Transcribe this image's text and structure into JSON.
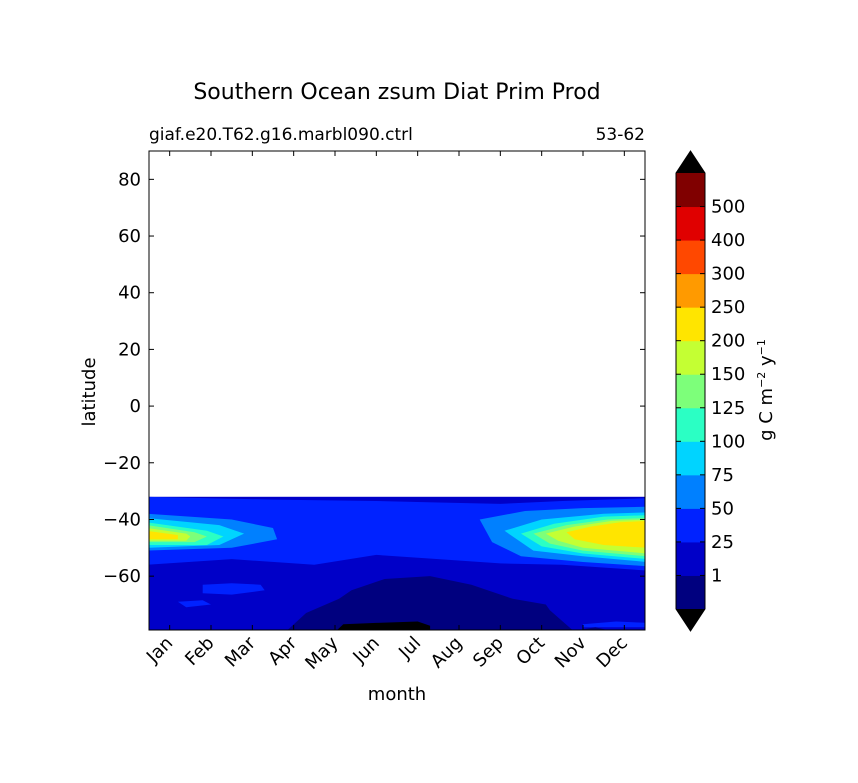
{
  "chart_data": {
    "type": "heatmap",
    "title": "Southern Ocean zsum Diat Prim Prod",
    "subtitle_left": "giaf.e20.T62.g16.marbl090.ctrl",
    "subtitle_right": "53-62",
    "xlabel": "month",
    "ylabel": "latitude",
    "x_categories": [
      "Jan",
      "Feb",
      "Mar",
      "Apr",
      "May",
      "Jun",
      "Jul",
      "Aug",
      "Sep",
      "Oct",
      "Nov",
      "Dec"
    ],
    "y_ticks": [
      "80",
      "60",
      "40",
      "20",
      "0",
      "−20",
      "−40",
      "−60"
    ],
    "ylim": [
      -79,
      90
    ],
    "data_lat_range": [
      -79,
      -32
    ],
    "grid": false,
    "colorbar": {
      "label_main": "g C m",
      "label_exp1": "−2",
      "label_mid": " y",
      "label_exp2": "−1",
      "placement": "right",
      "extend": "both",
      "under_color": "#000000",
      "over_color": "#000000",
      "tick_labels": [
        "1",
        "25",
        "50",
        "75",
        "100",
        "125",
        "150",
        "200",
        "250",
        "300",
        "400",
        "500"
      ],
      "colors": [
        "#00007f",
        "#0000c8",
        "#0022ff",
        "#0080ff",
        "#00d4ff",
        "#2bffc4",
        "#7dff7a",
        "#c4ff33",
        "#ffe500",
        "#ff9a00",
        "#ff4800",
        "#e00000",
        "#800000"
      ]
    },
    "field": {
      "note_levels": "level index 0..12 into colorbar.colors; latitudes in degrees, months as index 0..11",
      "bands": [
        {
          "level": 1,
          "lat_top": -32,
          "lat_bottom": -79
        },
        {
          "level": 2,
          "polygon": [
            [
              0,
              -32
            ],
            [
              2.5,
              -33
            ],
            [
              5,
              -33.5
            ],
            [
              6.5,
              -34
            ],
            [
              8,
              -34.5
            ],
            [
              9.5,
              -33.5
            ],
            [
              11.4,
              -32.5
            ],
            [
              11.4,
              -58
            ],
            [
              9.5,
              -56
            ],
            [
              8,
              -55.5
            ],
            [
              6.5,
              -54
            ],
            [
              5,
              -52.5
            ],
            [
              3.5,
              -56
            ],
            [
              1.5,
              -54
            ],
            [
              0,
              -56
            ]
          ]
        },
        {
          "level": 3,
          "polygon": [
            [
              0,
              -38
            ],
            [
              1.5,
              -40
            ],
            [
              2.5,
              -43
            ],
            [
              2.6,
              -47
            ],
            [
              1.5,
              -50
            ],
            [
              0,
              -51
            ]
          ]
        },
        {
          "level": 3,
          "polygon": [
            [
              7.5,
              -40
            ],
            [
              8.6,
              -37
            ],
            [
              10,
              -36
            ],
            [
              11.4,
              -35.5
            ],
            [
              11.4,
              -56.5
            ],
            [
              10,
              -55
            ],
            [
              8.5,
              -53
            ],
            [
              7.8,
              -48
            ]
          ]
        },
        {
          "level": 4,
          "polygon": [
            [
              0,
              -39.5
            ],
            [
              1.2,
              -42
            ],
            [
              1.8,
              -45
            ],
            [
              1.2,
              -49
            ],
            [
              0,
              -50
            ]
          ]
        },
        {
          "level": 4,
          "polygon": [
            [
              8.1,
              -44
            ],
            [
              9,
              -40
            ],
            [
              10.5,
              -38
            ],
            [
              11.4,
              -37.5
            ],
            [
              11.4,
              -55
            ],
            [
              10,
              -53
            ],
            [
              8.8,
              -51
            ]
          ]
        },
        {
          "level": 5,
          "polygon": [
            [
              0,
              -41
            ],
            [
              0.9,
              -44
            ],
            [
              1.3,
              -46
            ],
            [
              0.9,
              -49
            ],
            [
              0,
              -49
            ]
          ]
        },
        {
          "level": 5,
          "polygon": [
            [
              8.5,
              -45
            ],
            [
              9.3,
              -41.5
            ],
            [
              10.5,
              -39
            ],
            [
              11.4,
              -38.5
            ],
            [
              11.4,
              -54
            ],
            [
              10,
              -52
            ],
            [
              9,
              -49.5
            ]
          ]
        },
        {
          "level": 6,
          "polygon": [
            [
              0,
              -42
            ],
            [
              0.6,
              -44.5
            ],
            [
              0.9,
              -46
            ],
            [
              0.6,
              -48
            ],
            [
              0,
              -48
            ]
          ]
        },
        {
          "level": 6,
          "polygon": [
            [
              8.8,
              -45
            ],
            [
              9.6,
              -42
            ],
            [
              10.6,
              -40
            ],
            [
              11.4,
              -39.5
            ],
            [
              11.4,
              -53
            ],
            [
              10,
              -51
            ],
            [
              9.2,
              -48.5
            ]
          ]
        },
        {
          "level": 7,
          "polygon": [
            [
              0,
              -43
            ],
            [
              0.4,
              -45
            ],
            [
              0.5,
              -46
            ],
            [
              0.4,
              -47.5
            ],
            [
              0,
              -47.5
            ]
          ]
        },
        {
          "level": 7,
          "polygon": [
            [
              9.1,
              -45
            ],
            [
              9.8,
              -42.5
            ],
            [
              10.7,
              -40.5
            ],
            [
              11.4,
              -40
            ],
            [
              11.4,
              -52
            ],
            [
              10,
              -50
            ],
            [
              9.4,
              -47.5
            ]
          ]
        },
        {
          "level": 8,
          "polygon": [
            [
              0,
              -44
            ],
            [
              0.2,
              -45.5
            ],
            [
              0.2,
              -47
            ],
            [
              0,
              -47
            ]
          ]
        },
        {
          "level": 8,
          "polygon": [
            [
              9.6,
              -44.5
            ],
            [
              10.2,
              -42.5
            ],
            [
              10.9,
              -41
            ],
            [
              11.4,
              -40.5
            ],
            [
              11.4,
              -50
            ],
            [
              10.5,
              -49
            ],
            [
              9.8,
              -47
            ]
          ]
        },
        {
          "level": 2,
          "polygon": [
            [
              0.8,
              -63
            ],
            [
              1.5,
              -62.5
            ],
            [
              2.2,
              -63
            ],
            [
              2.3,
              -65
            ],
            [
              1.5,
              -66.5
            ],
            [
              0.8,
              -66
            ]
          ]
        },
        {
          "level": 2,
          "polygon": [
            [
              0.2,
              -69
            ],
            [
              0.8,
              -68.5
            ],
            [
              1,
              -70
            ],
            [
              0.4,
              -71
            ]
          ]
        },
        {
          "level": 2,
          "polygon": [
            [
              10,
              -77
            ],
            [
              10.8,
              -76
            ],
            [
              11.4,
              -76.5
            ],
            [
              11.4,
              -78
            ],
            [
              10,
              -78
            ]
          ]
        },
        {
          "level": 0,
          "polygon": [
            [
              2.8,
              -79
            ],
            [
              3.3,
              -73
            ],
            [
              4.1,
              -68
            ],
            [
              4.4,
              -65
            ],
            [
              5.2,
              -61
            ],
            [
              6.3,
              -60
            ],
            [
              7.3,
              -63
            ],
            [
              8.3,
              -68
            ],
            [
              9.1,
              -70
            ],
            [
              9.2,
              -72
            ],
            [
              9.8,
              -79
            ]
          ]
        },
        {
          "level": 0,
          "polygon": [
            [
              9.6,
              -79
            ],
            [
              10.3,
              -78
            ],
            [
              10.8,
              -79
            ]
          ]
        },
        {
          "level": "under",
          "polygon": [
            [
              4,
              -79
            ],
            [
              4.2,
              -77
            ],
            [
              5,
              -76.5
            ],
            [
              6,
              -76
            ],
            [
              6.3,
              -77.5
            ],
            [
              6.3,
              -79
            ]
          ]
        }
      ]
    }
  }
}
